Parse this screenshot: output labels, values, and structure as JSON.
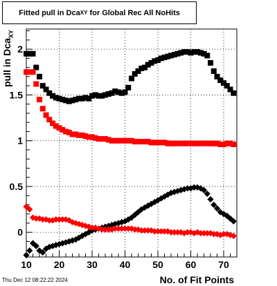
{
  "chart_data": {
    "type": "scatter",
    "title_parts": {
      "main": "Fitted pull in Dca",
      "sub": "XY",
      "rest": " for Global Rec All NoHits"
    },
    "xlabel": "No. of Fit Points",
    "ylabel_parts": {
      "main": "pull in Dca",
      "sub": "XY"
    },
    "xlim": [
      10,
      74
    ],
    "ylim": [
      -0.27,
      2.22
    ],
    "x_ticks": [
      10,
      20,
      30,
      40,
      50,
      60,
      70
    ],
    "y_ticks": [
      0,
      0.5,
      1,
      1.5,
      2
    ],
    "y_tick_labels": [
      "0",
      "0.5",
      "1",
      "1.5",
      "2"
    ],
    "grid": true,
    "series": [
      {
        "marker": "square",
        "color": "#000000",
        "x": [
          10,
          11,
          12,
          13,
          14,
          15,
          16,
          17,
          18,
          19,
          20,
          21,
          22,
          23,
          24,
          25,
          26,
          27,
          28,
          29,
          30,
          31,
          32,
          33,
          34,
          35,
          36,
          37,
          38,
          39,
          40,
          41,
          42,
          43,
          44,
          45,
          46,
          47,
          48,
          49,
          50,
          51,
          52,
          53,
          54,
          55,
          56,
          57,
          58,
          59,
          60,
          61,
          62,
          63,
          64,
          65,
          66,
          67,
          68,
          69,
          70,
          71,
          72,
          73
        ],
        "y": [
          1.95,
          1.95,
          1.95,
          1.8,
          1.7,
          1.6,
          1.56,
          1.52,
          1.49,
          1.47,
          1.46,
          1.45,
          1.44,
          1.43,
          1.44,
          1.45,
          1.46,
          1.46,
          1.47,
          1.46,
          1.49,
          1.5,
          1.49,
          1.49,
          1.5,
          1.51,
          1.52,
          1.54,
          1.53,
          1.52,
          1.53,
          1.58,
          1.68,
          1.73,
          1.76,
          1.79,
          1.8,
          1.83,
          1.85,
          1.87,
          1.88,
          1.9,
          1.91,
          1.92,
          1.93,
          1.94,
          1.95,
          1.96,
          1.97,
          1.97,
          1.96,
          1.97,
          1.97,
          1.96,
          1.95,
          1.93,
          1.85,
          1.76,
          1.7,
          1.66,
          1.63,
          1.6,
          1.56,
          1.52
        ]
      },
      {
        "marker": "square",
        "color": "#ff0000",
        "x": [
          10,
          11,
          12,
          13,
          14,
          15,
          16,
          17,
          18,
          19,
          20,
          21,
          22,
          23,
          24,
          25,
          26,
          27,
          28,
          29,
          30,
          31,
          32,
          33,
          34,
          35,
          36,
          37,
          38,
          39,
          40,
          41,
          42,
          43,
          44,
          45,
          46,
          47,
          48,
          49,
          50,
          51,
          52,
          53,
          54,
          55,
          56,
          57,
          58,
          59,
          60,
          61,
          62,
          63,
          64,
          65,
          66,
          67,
          68,
          69,
          70,
          71,
          72,
          73
        ],
        "y": [
          1.75,
          1.75,
          1.75,
          1.62,
          1.45,
          1.35,
          1.28,
          1.23,
          1.19,
          1.16,
          1.14,
          1.12,
          1.1,
          1.09,
          1.07,
          1.07,
          1.06,
          1.06,
          1.05,
          1.04,
          1.04,
          1.03,
          1.02,
          1.02,
          1.02,
          1.01,
          1.0,
          1.0,
          1.0,
          1.0,
          1.0,
          1.0,
          1.0,
          0.99,
          0.99,
          0.99,
          0.99,
          0.99,
          0.98,
          0.98,
          0.98,
          0.98,
          0.98,
          0.97,
          0.97,
          0.97,
          0.97,
          0.97,
          0.97,
          0.97,
          0.97,
          0.97,
          0.97,
          0.97,
          0.97,
          0.97,
          0.97,
          0.97,
          0.97,
          0.96,
          0.96,
          0.97,
          0.97,
          0.96
        ]
      },
      {
        "marker": "diamond",
        "color": "#000000",
        "x": [
          10,
          11,
          12,
          13,
          14,
          15,
          16,
          17,
          18,
          19,
          20,
          21,
          22,
          23,
          24,
          25,
          26,
          27,
          28,
          29,
          30,
          31,
          32,
          33,
          34,
          35,
          36,
          37,
          38,
          39,
          40,
          41,
          42,
          43,
          44,
          45,
          46,
          47,
          48,
          49,
          50,
          51,
          52,
          53,
          54,
          55,
          56,
          57,
          58,
          59,
          60,
          61,
          62,
          63,
          64,
          65,
          66,
          67,
          68,
          69,
          70,
          71,
          72,
          73
        ],
        "y": [
          -0.25,
          -0.2,
          -0.12,
          -0.15,
          -0.2,
          -0.22,
          -0.18,
          -0.16,
          -0.15,
          -0.14,
          -0.13,
          -0.12,
          -0.11,
          -0.1,
          -0.09,
          -0.08,
          -0.06,
          -0.04,
          -0.02,
          0.0,
          0.02,
          0.03,
          0.04,
          0.05,
          0.06,
          0.07,
          0.08,
          0.09,
          0.1,
          0.11,
          0.12,
          0.14,
          0.16,
          0.19,
          0.22,
          0.25,
          0.27,
          0.29,
          0.31,
          0.33,
          0.35,
          0.37,
          0.39,
          0.41,
          0.43,
          0.44,
          0.45,
          0.46,
          0.47,
          0.48,
          0.48,
          0.49,
          0.49,
          0.48,
          0.46,
          0.42,
          0.36,
          0.3,
          0.26,
          0.22,
          0.2,
          0.18,
          0.15,
          0.12
        ]
      },
      {
        "marker": "diamond",
        "color": "#ff0000",
        "x": [
          10,
          11,
          12,
          13,
          14,
          15,
          16,
          17,
          18,
          19,
          20,
          21,
          22,
          23,
          24,
          25,
          26,
          27,
          28,
          29,
          30,
          31,
          32,
          33,
          34,
          35,
          36,
          37,
          38,
          39,
          40,
          41,
          42,
          43,
          44,
          45,
          46,
          47,
          48,
          49,
          50,
          51,
          52,
          53,
          54,
          55,
          56,
          57,
          58,
          59,
          60,
          61,
          62,
          63,
          64,
          65,
          66,
          67,
          68,
          69,
          70,
          71,
          72,
          73
        ],
        "y": [
          0.28,
          0.25,
          0.16,
          0.15,
          0.15,
          0.14,
          0.14,
          0.13,
          0.13,
          0.14,
          0.14,
          0.14,
          0.14,
          0.13,
          0.11,
          0.1,
          0.09,
          0.08,
          0.07,
          0.06,
          0.05,
          0.05,
          0.04,
          0.03,
          0.03,
          0.03,
          0.03,
          0.04,
          0.04,
          0.04,
          0.04,
          0.04,
          0.04,
          0.03,
          0.03,
          0.02,
          0.02,
          0.02,
          0.02,
          0.01,
          0.01,
          0.01,
          0.01,
          0.01,
          0.0,
          0.0,
          0.0,
          0.0,
          -0.01,
          0.0,
          0.0,
          -0.01,
          0.0,
          -0.01,
          -0.01,
          -0.01,
          -0.01,
          -0.02,
          -0.02,
          -0.03,
          -0.02,
          -0.02,
          -0.03,
          -0.04
        ]
      }
    ]
  },
  "footer": {
    "timestamp": "Thu Dec 12 08:22:22 2024"
  }
}
